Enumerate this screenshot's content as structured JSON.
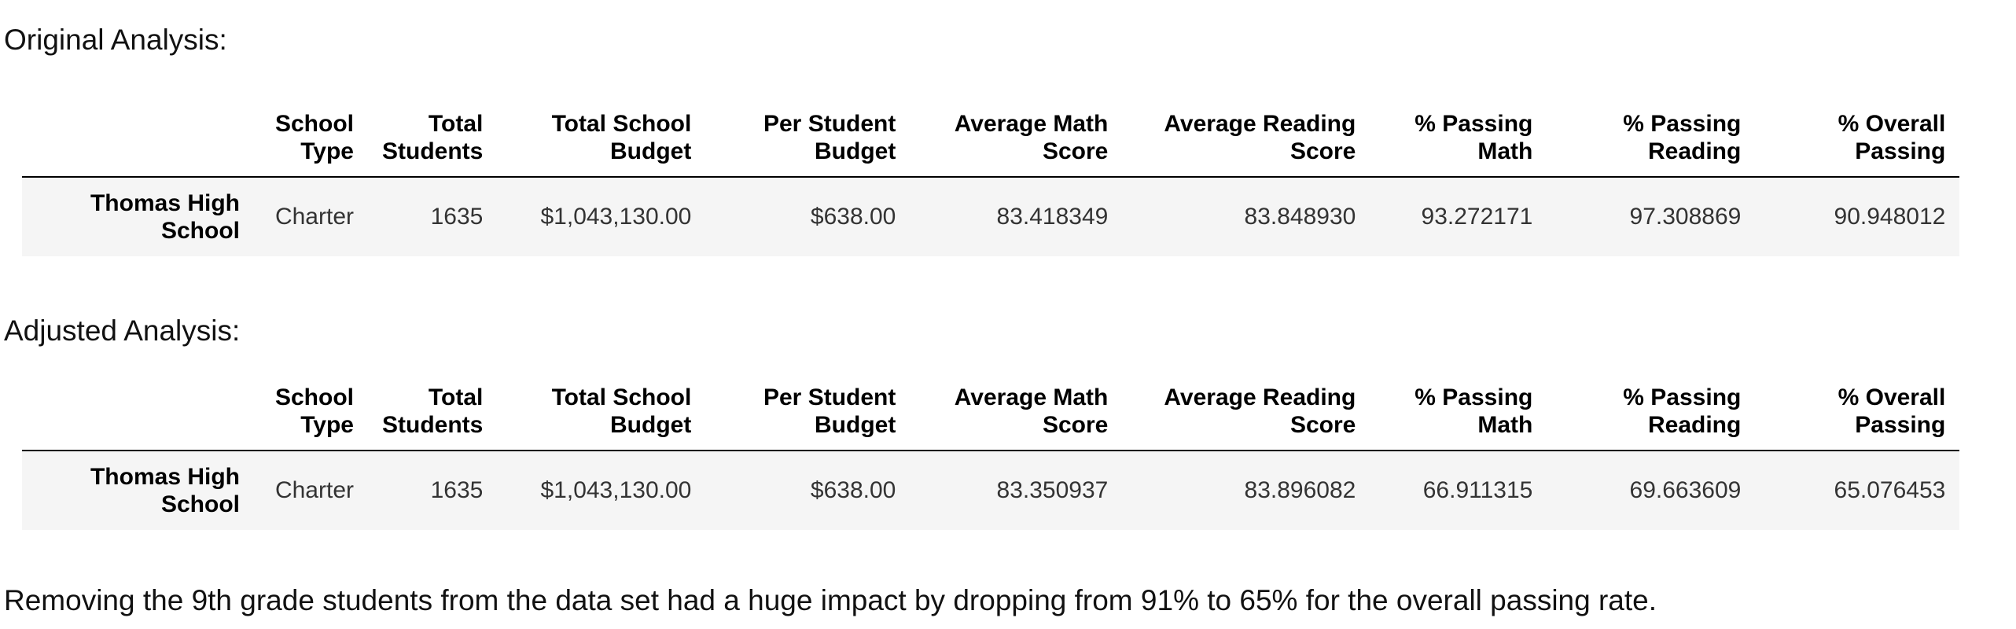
{
  "sections": [
    {
      "heading": "Original Analysis:",
      "columns": [
        [
          "School",
          "Type"
        ],
        [
          "Total",
          "Students"
        ],
        [
          "Total School",
          "Budget"
        ],
        [
          "Per Student",
          "Budget"
        ],
        [
          "Average Math",
          "Score"
        ],
        [
          "Average Reading",
          "Score"
        ],
        [
          "% Passing",
          "Math"
        ],
        [
          "% Passing",
          "Reading"
        ],
        [
          "% Overall",
          "Passing"
        ]
      ],
      "row_label": [
        "Thomas High",
        "School"
      ],
      "values": [
        "Charter",
        "1635",
        "$1,043,130.00",
        "$638.00",
        "83.418349",
        "83.848930",
        "93.272171",
        "97.308869",
        "90.948012"
      ]
    },
    {
      "heading": "Adjusted Analysis:",
      "columns": [
        [
          "School",
          "Type"
        ],
        [
          "Total",
          "Students"
        ],
        [
          "Total School",
          "Budget"
        ],
        [
          "Per Student",
          "Budget"
        ],
        [
          "Average Math",
          "Score"
        ],
        [
          "Average Reading",
          "Score"
        ],
        [
          "% Passing",
          "Math"
        ],
        [
          "% Passing",
          "Reading"
        ],
        [
          "% Overall",
          "Passing"
        ]
      ],
      "row_label": [
        "Thomas High",
        "School"
      ],
      "values": [
        "Charter",
        "1635",
        "$1,043,130.00",
        "$638.00",
        "83.350937",
        "83.896082",
        "66.911315",
        "69.663609",
        "65.076453"
      ]
    }
  ],
  "conclusion": "Removing the 9th grade students from the data set had a huge impact by dropping from 91% to 65% for the overall passing rate."
}
